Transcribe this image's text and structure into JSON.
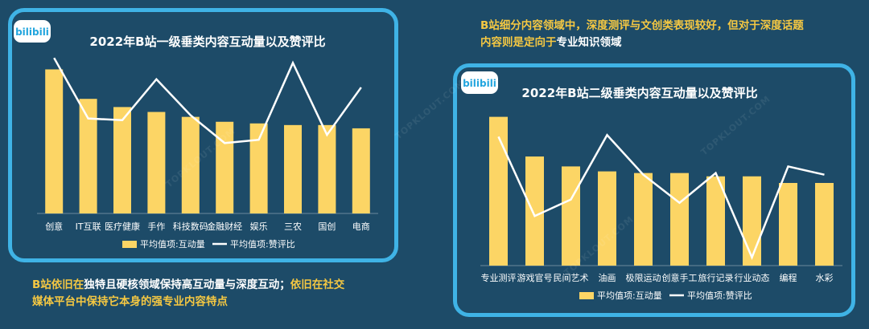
{
  "colors": {
    "bar": "#fcd565",
    "line": "#ffffff",
    "border": "#3fb3e6",
    "background": "#1d4b68",
    "highlight": "#f5c842"
  },
  "logo_icon": "bilibili-logo-icon",
  "chart_data": [
    {
      "type": "bar",
      "title": "2022年B站一级垂类内容互动量以及赞评比",
      "categories": [
        "创意",
        "IT互联",
        "医疗健康",
        "手作",
        "科技数码",
        "金融财经",
        "娱乐",
        "三农",
        "国创",
        "电商"
      ],
      "series": [
        {
          "name": "平均值项:互动量",
          "type": "bar",
          "values": [
            88,
            70,
            65,
            62,
            59,
            56,
            55,
            54,
            54,
            52
          ]
        },
        {
          "name": "平均值项:赞评比",
          "type": "line",
          "values": [
            95,
            58,
            57,
            82,
            60,
            43,
            45,
            92,
            48,
            77
          ]
        }
      ],
      "ylim": [
        0,
        100
      ],
      "legend": "bottom"
    },
    {
      "type": "bar",
      "title": "2022年B站二级垂类内容互动量以及赞评比",
      "categories": [
        "专业测评",
        "游戏官号",
        "民间艺术",
        "油画",
        "极限运动",
        "创意手工",
        "旅行记录",
        "行业动态",
        "编程",
        "水彩"
      ],
      "series": [
        {
          "name": "平均值项:互动量",
          "type": "bar",
          "values": [
            90,
            66,
            60,
            57,
            56,
            56,
            54,
            54,
            50,
            50
          ]
        },
        {
          "name": "平均值项:赞评比",
          "type": "line",
          "values": [
            78,
            30,
            40,
            79,
            55,
            38,
            56,
            5,
            60,
            55
          ]
        }
      ],
      "ylim": [
        0,
        100
      ],
      "legend": "bottom"
    }
  ],
  "captions": {
    "bottom_left": [
      [
        {
          "t": "B站依旧在",
          "hl": true
        },
        {
          "t": "独特且硬核领域保持高互动量与深度互动；",
          "hl": false
        },
        {
          "t": "依旧在社交",
          "hl": true
        }
      ],
      [
        {
          "t": "媒体平台中保持它本身的强专业内容特点",
          "hl": true
        }
      ]
    ],
    "top_right": [
      [
        {
          "t": "B站细分内容领域中，深度测评与文创类表现较好，但对于深度话题",
          "hl": true
        }
      ],
      [
        {
          "t": "内容则是定向于",
          "hl": true
        },
        {
          "t": "专业知识领域",
          "hl": false
        }
      ]
    ]
  },
  "watermarks": [
    "TOPKLOUT.COM",
    "TOPKLOUT.COM",
    "TOPKLOUT.COM",
    "TOPKLOUT.COM"
  ]
}
